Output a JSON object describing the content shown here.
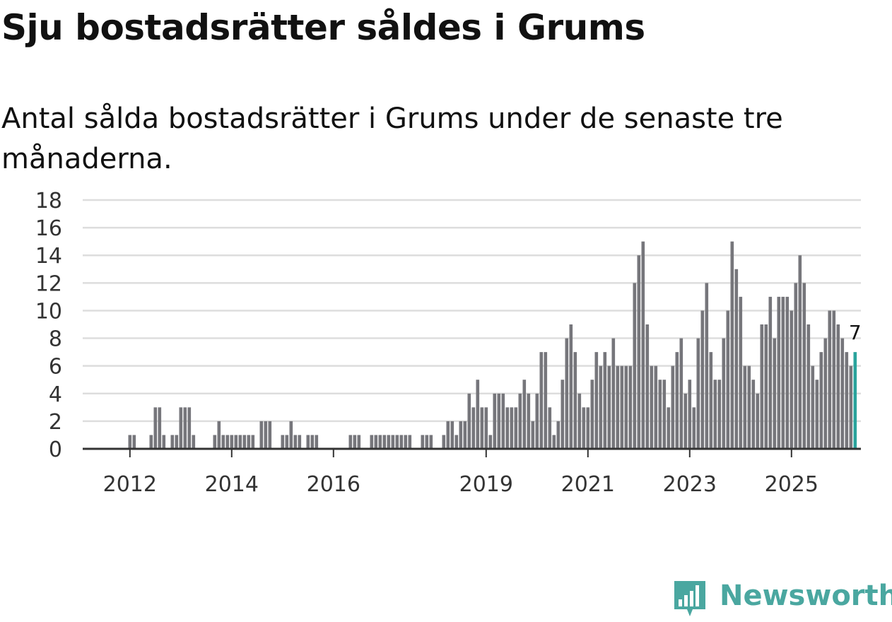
{
  "title": "Sju bostadsrätter såldes i Grums",
  "subtitle": "Antal sålda bostadsrätter i Grums under de senaste tre månaderna.",
  "brand": {
    "name": "Newsworthy",
    "color": "#4aa7a0",
    "icon": "newsworthy-logo-icon"
  },
  "colors": {
    "bar": "#76767b",
    "highlight": "#2aa39c",
    "grid": "#dddddd",
    "axis": "#333333"
  },
  "chart_data": {
    "type": "bar",
    "title": "Sju bostadsrätter såldes i Grums",
    "xlabel": "",
    "ylabel": "",
    "ylim": [
      0,
      18
    ],
    "yticks": [
      0,
      2,
      4,
      6,
      8,
      10,
      12,
      14,
      16,
      18
    ],
    "ytick_labels": [
      "0",
      "2",
      "4",
      "6",
      "8",
      "10",
      "12",
      "14",
      "16",
      "18"
    ],
    "x_start": "2011-03",
    "xticks": [
      {
        "label": "2012",
        "month_index": 10
      },
      {
        "label": "2014",
        "month_index": 34
      },
      {
        "label": "2016",
        "month_index": 58
      },
      {
        "label": "2019",
        "month_index": 94
      },
      {
        "label": "2021",
        "month_index": 118
      },
      {
        "label": "2023",
        "month_index": 142
      },
      {
        "label": "2025",
        "month_index": 166
      }
    ],
    "values": [
      0,
      0,
      0,
      0,
      0,
      0,
      0,
      0,
      0,
      0,
      1,
      1,
      0,
      0,
      0,
      1,
      3,
      3,
      1,
      0,
      1,
      1,
      3,
      3,
      3,
      1,
      0,
      0,
      0,
      0,
      1,
      2,
      1,
      1,
      1,
      1,
      1,
      1,
      1,
      1,
      0,
      2,
      2,
      2,
      0,
      0,
      1,
      1,
      2,
      1,
      1,
      0,
      1,
      1,
      1,
      0,
      0,
      0,
      0,
      0,
      0,
      0,
      1,
      1,
      1,
      0,
      0,
      1,
      1,
      1,
      1,
      1,
      1,
      1,
      1,
      1,
      1,
      0,
      0,
      1,
      1,
      1,
      0,
      0,
      1,
      2,
      2,
      1,
      2,
      2,
      4,
      3,
      5,
      3,
      3,
      1,
      4,
      4,
      4,
      3,
      3,
      3,
      4,
      5,
      4,
      2,
      4,
      7,
      7,
      3,
      1,
      2,
      5,
      8,
      9,
      7,
      4,
      3,
      3,
      5,
      7,
      6,
      7,
      6,
      8,
      6,
      6,
      6,
      6,
      12,
      14,
      15,
      9,
      6,
      6,
      5,
      5,
      3,
      6,
      7,
      8,
      4,
      5,
      3,
      8,
      10,
      12,
      7,
      5,
      5,
      8,
      10,
      15,
      13,
      11,
      6,
      6,
      5,
      4,
      9,
      9,
      11,
      8,
      11,
      11,
      11,
      10,
      12,
      14,
      12,
      9,
      6,
      5,
      7,
      8,
      10,
      10,
      9,
      8,
      7,
      6,
      7
    ],
    "highlight": {
      "index": 181,
      "value": 7,
      "label": "7"
    }
  }
}
